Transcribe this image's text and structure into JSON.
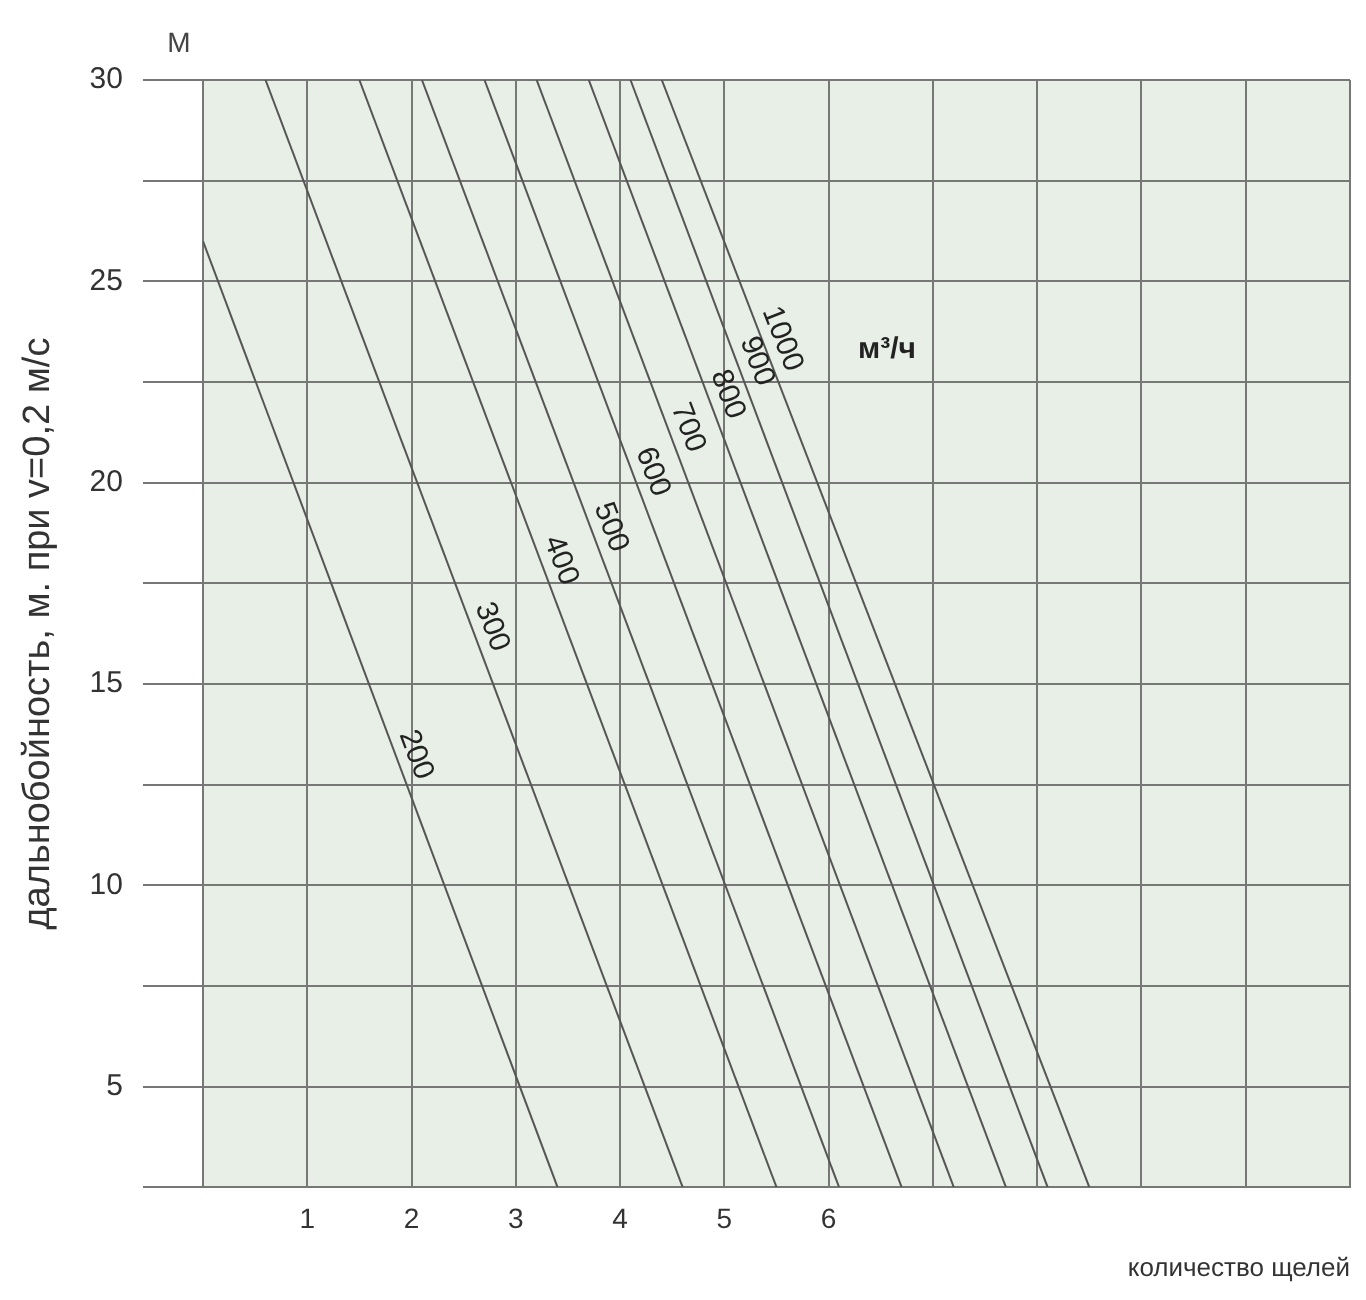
{
  "chart_data": {
    "type": "line",
    "xlabel": "количество щелей",
    "ylabel": "дальнобойность, м. при v=0,2 м/с",
    "annotations": [
      "М",
      "м³/ч"
    ],
    "xlim": [
      0,
      11
    ],
    "xticks": [
      1,
      2,
      3,
      4,
      5,
      6,
      {
        "value": 7,
        "label": null
      },
      {
        "value": 8,
        "label": null
      },
      {
        "value": 9,
        "label": null
      },
      {
        "value": 10,
        "label": null
      },
      {
        "value": 11,
        "label": null
      }
    ],
    "ylim": [
      2.5,
      30
    ],
    "yticks": [
      {
        "value": 2.5,
        "label": null
      },
      5,
      {
        "value": 7.5,
        "label": null
      },
      10,
      {
        "value": 12.5,
        "label": null
      },
      15,
      {
        "value": 17.5,
        "label": null
      },
      20,
      {
        "value": 22.5,
        "label": null
      },
      25,
      {
        "value": 27.5,
        "label": null
      },
      30
    ],
    "grid": true,
    "legend": false,
    "marker": "none",
    "line_style": "solid",
    "series": [
      {
        "name": "200",
        "color": "#555555",
        "x": [
          0,
          3.4
        ],
        "values": [
          26,
          2.5
        ]
      },
      {
        "name": "300",
        "color": "#555555",
        "x": [
          0.6,
          4.6
        ],
        "values": [
          30,
          2.5
        ]
      },
      {
        "name": "400",
        "color": "#555555",
        "x": [
          1.5,
          5.5
        ],
        "values": [
          30,
          2.5
        ]
      },
      {
        "name": "500",
        "color": "#555555",
        "x": [
          2.1,
          6.1
        ],
        "values": [
          30,
          2.5
        ]
      },
      {
        "name": "600",
        "color": "#555555",
        "x": [
          2.7,
          6.7
        ],
        "values": [
          30,
          2.5
        ]
      },
      {
        "name": "700",
        "color": "#555555",
        "x": [
          3.2,
          7.2
        ],
        "values": [
          30,
          2.5
        ]
      },
      {
        "name": "800",
        "color": "#555555",
        "x": [
          3.7,
          7.7
        ],
        "values": [
          30,
          2.5
        ]
      },
      {
        "name": "900",
        "color": "#555555",
        "x": [
          4.1,
          8.1
        ],
        "values": [
          30,
          2.5
        ]
      },
      {
        "name": "1000",
        "color": "#555555",
        "x": [
          4.4,
          8.5
        ],
        "values": [
          30,
          2.5
        ]
      }
    ]
  }
}
